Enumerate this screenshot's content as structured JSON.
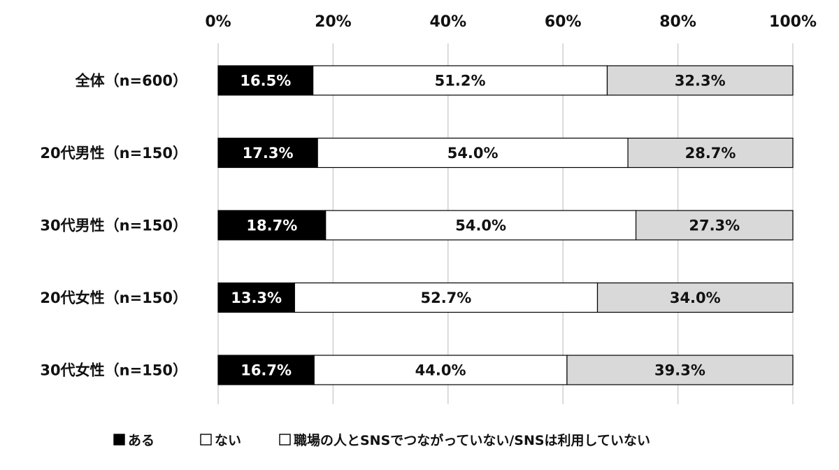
{
  "chart_data": {
    "type": "bar",
    "orientation": "horizontal",
    "stacked": true,
    "percent": true,
    "title": "",
    "xlabel": "",
    "ylabel": "",
    "xlim": [
      0,
      100
    ],
    "x_ticks": [
      "0%",
      "20%",
      "40%",
      "60%",
      "80%",
      "100%"
    ],
    "x_tick_values": [
      0,
      20,
      40,
      60,
      80,
      100
    ],
    "grid": true,
    "legend_position": "bottom",
    "categories": [
      "全体（n=600）",
      "20代男性（n=150）",
      "30代男性（n=150）",
      "20代女性（n=150）",
      "30代女性（n=150）"
    ],
    "series": [
      {
        "name": "ある",
        "color": "#000000",
        "label_color": "#ffffff",
        "values": [
          16.5,
          17.3,
          18.7,
          13.3,
          16.7
        ],
        "labels": [
          "16.5%",
          "17.3%",
          "18.7%",
          "13.3%",
          "16.7%"
        ]
      },
      {
        "name": "ない",
        "color": "#ffffff",
        "label_color": "#111111",
        "values": [
          51.2,
          54.0,
          54.0,
          52.7,
          44.0
        ],
        "labels": [
          "51.2%",
          "54.0%",
          "54.0%",
          "52.7%",
          "44.0%"
        ]
      },
      {
        "name": "職場の人とSNSでつながっていない/SNSは利用していない",
        "color": "#d9d9d9",
        "label_color": "#111111",
        "values": [
          32.3,
          28.7,
          27.3,
          34.0,
          39.3
        ],
        "labels": [
          "32.3%",
          "28.7%",
          "27.3%",
          "34.0%",
          "39.3%"
        ]
      }
    ]
  }
}
